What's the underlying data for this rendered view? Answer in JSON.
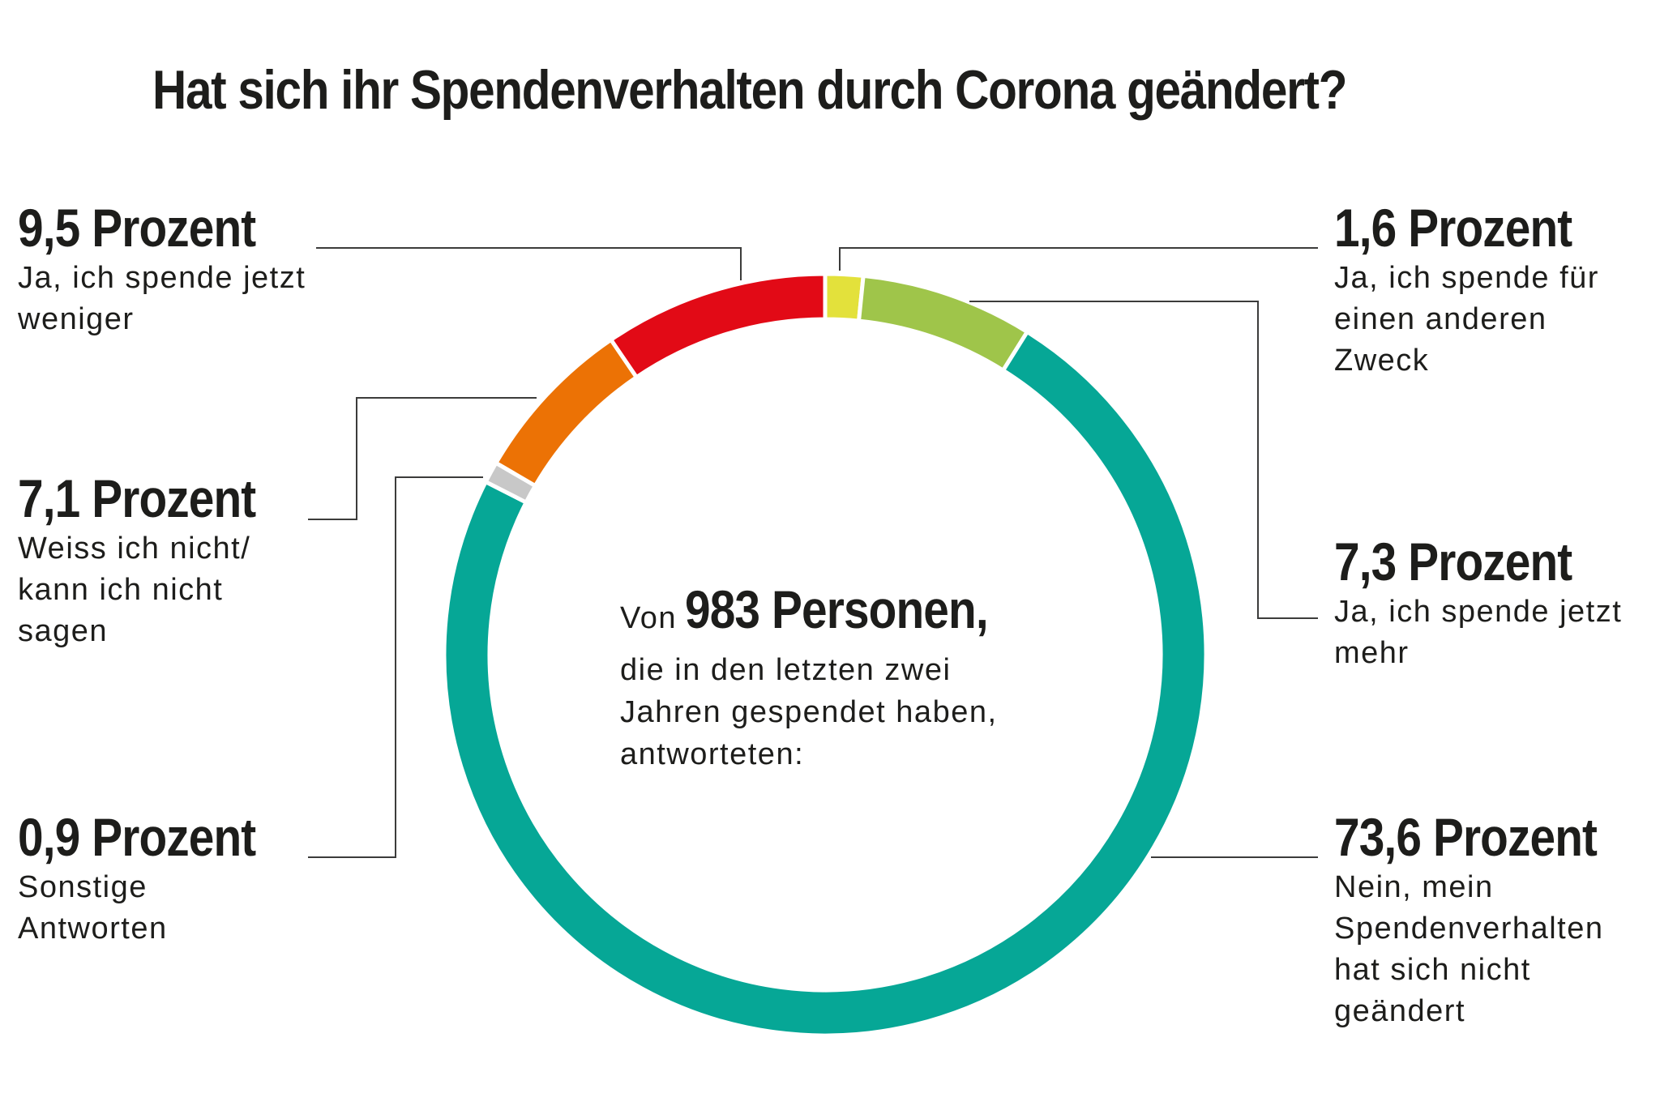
{
  "title": "Hat sich ihr Spendenverhalten durch Corona geändert?",
  "center": {
    "prefix": "Von",
    "count": "983 Personen,",
    "line2": "die in den letzten zwei",
    "line3": "Jahren gespendet haben,",
    "line4": "antworteten:"
  },
  "chart_data": {
    "type": "pie",
    "style": "donut",
    "title": "Hat sich ihr Spendenverhalten durch Corona geändert?",
    "unit": "Prozent",
    "total_respondents": 983,
    "slices": [
      {
        "key": "spende_anderen_zweck",
        "value": 1.6,
        "label": "1,6 Prozent",
        "desc": [
          "Ja, ich spende für",
          "einen anderen",
          "Zweck"
        ],
        "color": "#e3e13b"
      },
      {
        "key": "spende_mehr",
        "value": 7.3,
        "label": "7,3 Prozent",
        "desc": [
          "Ja, ich spende jetzt",
          "mehr"
        ],
        "color": "#9fc54a"
      },
      {
        "key": "nein_unveraendert",
        "value": 73.6,
        "label": "73,6 Prozent",
        "desc": [
          "Nein, mein",
          "Spendenverhalten",
          "hat sich nicht",
          "geändert"
        ],
        "color": "#06a796"
      },
      {
        "key": "sonstige",
        "value": 0.9,
        "label": "0,9 Prozent",
        "desc": [
          "Sonstige",
          "Antworten"
        ],
        "color": "#c8c8c8"
      },
      {
        "key": "weiss_nicht",
        "value": 7.1,
        "label": "7,1 Prozent",
        "desc": [
          "Weiss ich nicht/",
          "kann ich nicht",
          "sagen"
        ],
        "color": "#ec7205"
      },
      {
        "key": "spende_weniger",
        "value": 9.5,
        "label": "9,5 Prozent",
        "desc": [
          "Ja, ich spende jetzt",
          "weniger"
        ],
        "color": "#e20a16"
      }
    ]
  }
}
